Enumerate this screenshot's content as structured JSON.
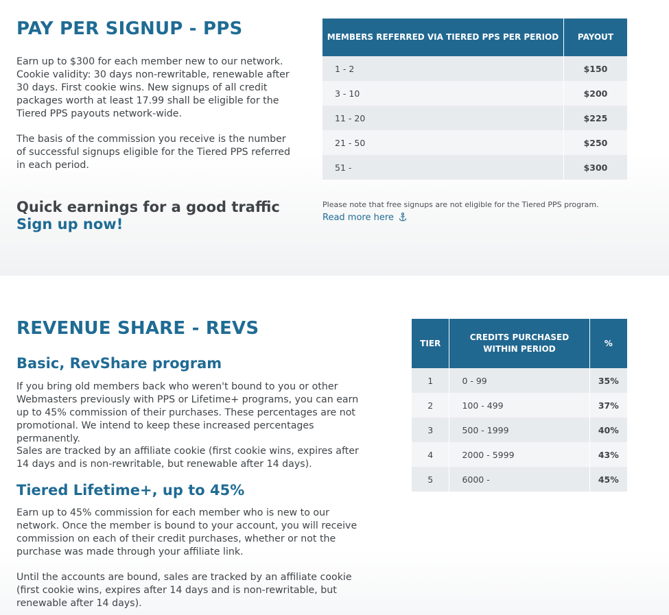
{
  "pps": {
    "title": "PAY PER SIGNUP - PPS",
    "para1": "Earn up to $300 for each member new to our network. Cookie validity: 30 days non-rewritable, renewable after 30 days. First cookie wins. New signups of all credit packages worth at least 17.99 shall be eligible for the Tiered PPS payouts network-wide.",
    "para2": "The basis of the commission you receive is the number of successful signups eligible for the Tiered PPS referred in each period.",
    "tagline": "Quick earnings for a good traffic",
    "signup_link": "Sign up now!",
    "table": {
      "headers": [
        "MEMBERS REFERRED VIA TIERED PPS PER PERIOD",
        "PAYOUT"
      ],
      "rows": [
        [
          "1 - 2",
          "$150"
        ],
        [
          "3 - 10",
          "$200"
        ],
        [
          "11 - 20",
          "$225"
        ],
        [
          "21 - 50",
          "$250"
        ],
        [
          "51 -",
          "$300"
        ]
      ]
    },
    "note": "Please note that free signups are not eligible for the Tiered PPS program.",
    "read_more": "Read more here",
    "read_more_icon": "anchor-icon"
  },
  "revs": {
    "title": "REVENUE SHARE - REVS",
    "basic_heading": "Basic, RevShare program",
    "basic_para1": "If you bring old members back who weren't bound to you or other Webmasters previously with PPS or Lifetime+ programs, you can earn up to 45% commission of their purchases. These percentages are not promotional. We intend to keep these increased percentages permanently.",
    "basic_para2": "Sales are tracked by an affiliate cookie (first cookie wins, expires after 14 days and is non-rewritable, but renewable after 14 days).",
    "lifetime_heading": "Tiered Lifetime+, up to 45%",
    "lifetime_para1": "Earn up to 45% commission for each member who is new to our network. Once the member is bound to your account, you will receive commission on each of their credit purchases, whether or not the purchase was made through your affiliate link.",
    "lifetime_para2": "Until the accounts are bound, sales are tracked by an affiliate cookie (first cookie wins, expires after 14 days and is non-rewritable, but renewable after 14 days).",
    "table": {
      "headers": [
        "TIER",
        "CREDITS PURCHASED WITHIN PERIOD",
        "%"
      ],
      "rows": [
        [
          "1",
          "0 - 99",
          "35%"
        ],
        [
          "2",
          "100 - 499",
          "37%"
        ],
        [
          "3",
          "500 - 1999",
          "40%"
        ],
        [
          "4",
          "2000 - 5999",
          "43%"
        ],
        [
          "5",
          "6000 -",
          "45%"
        ]
      ]
    }
  },
  "colors": {
    "brand_blue": "#1f6b94",
    "table_header": "#216891",
    "row_odd": "#e8ebee",
    "row_even": "#f4f5f7"
  }
}
